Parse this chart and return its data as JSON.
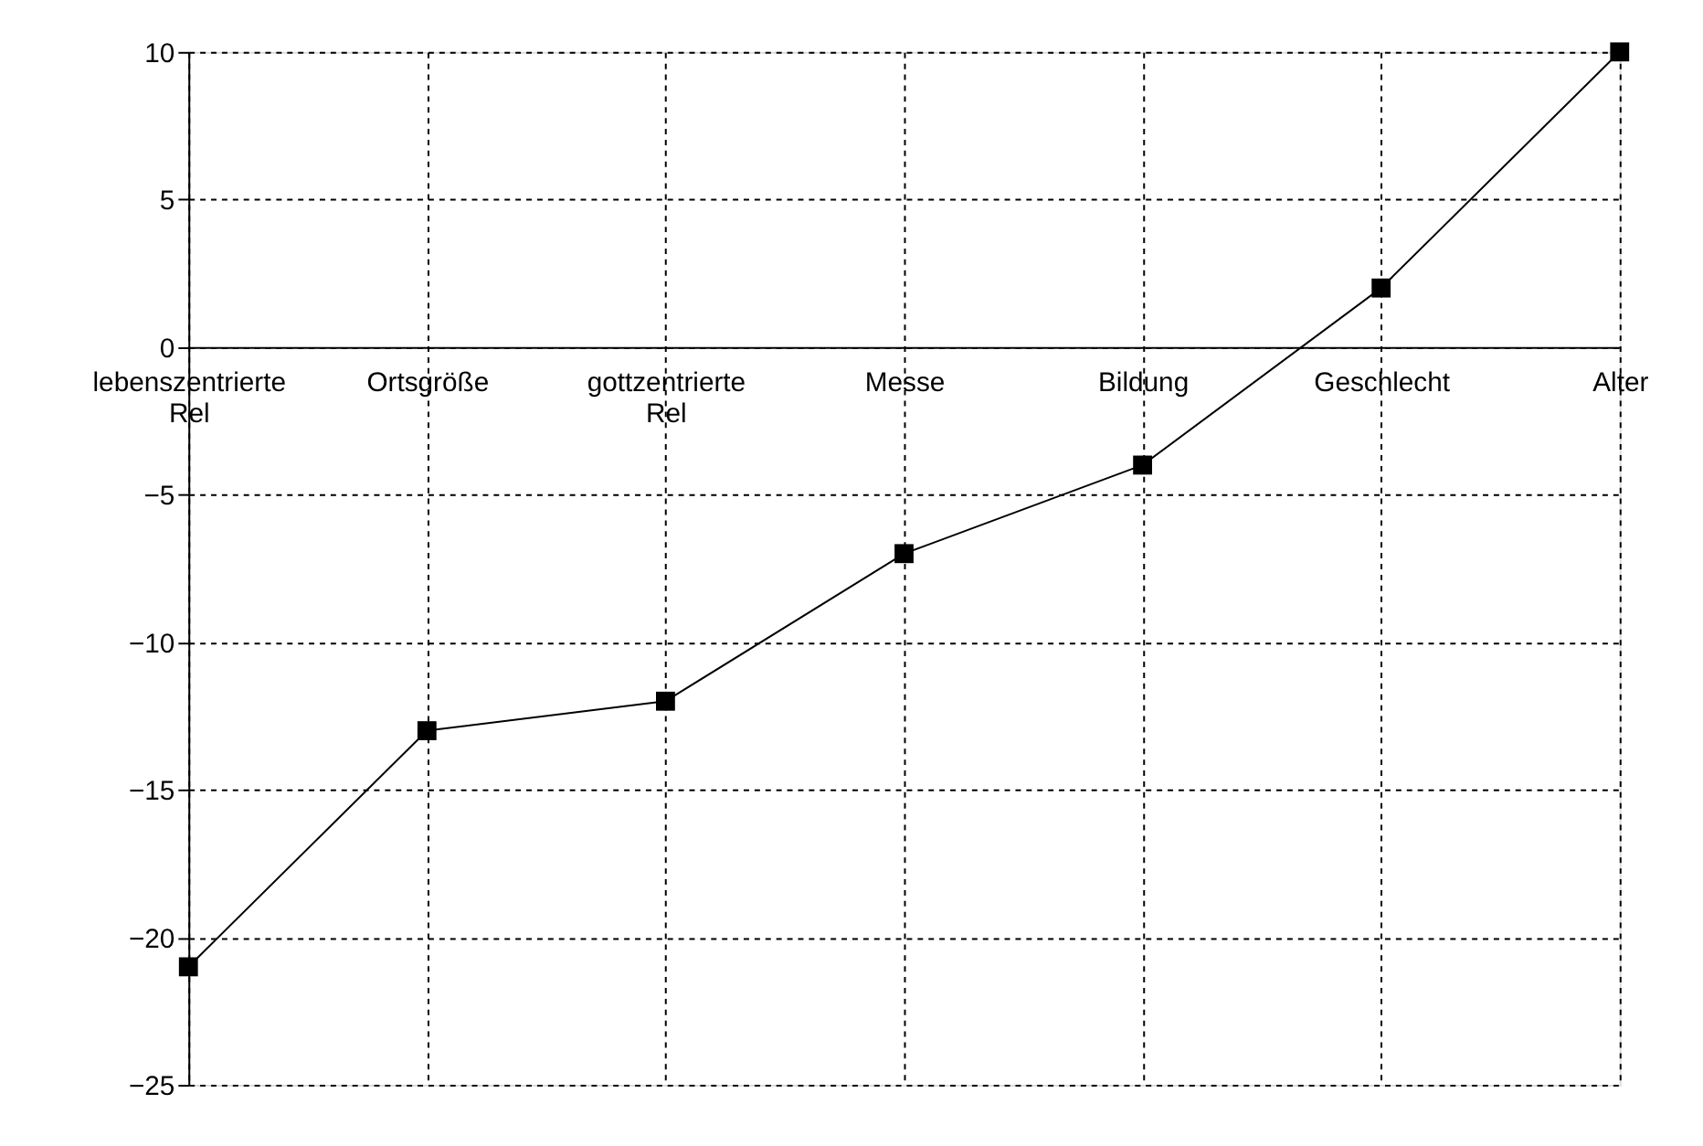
{
  "chart_data": {
    "type": "line",
    "categories": [
      "lebenszentrierte Rel",
      "Ortsgröße",
      "gottzentrierte Rel",
      "Messe",
      "Bildung",
      "Geschlecht",
      "Alter"
    ],
    "values": [
      -21,
      -13,
      -12,
      -7,
      -4,
      2,
      10
    ],
    "color": "#000000",
    "marker": "square",
    "line_style": "solid",
    "ylim": [
      -25,
      10
    ],
    "yticks": [
      -25,
      -20,
      -15,
      -10,
      -5,
      0,
      5,
      10
    ],
    "grid": true
  }
}
